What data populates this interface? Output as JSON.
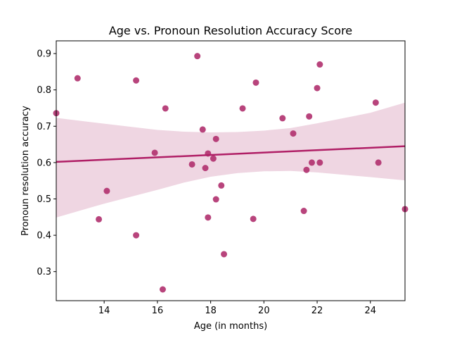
{
  "chart_data": {
    "type": "scatter",
    "title": "Age vs. Pronoun Resolution Accuracy Score",
    "xlabel": "Age (in months)",
    "ylabel": "Pronoun resolution accuracy",
    "xlim": [
      12.2,
      25.3
    ],
    "ylim": [
      0.22,
      0.935
    ],
    "xticks": [
      14,
      16,
      18,
      20,
      22,
      24
    ],
    "yticks": [
      0.3,
      0.4,
      0.5,
      0.6,
      0.7,
      0.8,
      0.9
    ],
    "grid": false,
    "colors": {
      "points": "#b0306e",
      "line": "#b01f66",
      "band": "#efd6e2"
    },
    "points": [
      {
        "x": 12.2,
        "y": 0.736
      },
      {
        "x": 13.0,
        "y": 0.832
      },
      {
        "x": 13.8,
        "y": 0.444
      },
      {
        "x": 14.1,
        "y": 0.522
      },
      {
        "x": 15.2,
        "y": 0.826
      },
      {
        "x": 15.2,
        "y": 0.4
      },
      {
        "x": 15.9,
        "y": 0.627
      },
      {
        "x": 16.2,
        "y": 0.251
      },
      {
        "x": 16.3,
        "y": 0.749
      },
      {
        "x": 17.3,
        "y": 0.595
      },
      {
        "x": 17.5,
        "y": 0.893
      },
      {
        "x": 17.7,
        "y": 0.691
      },
      {
        "x": 17.8,
        "y": 0.585
      },
      {
        "x": 17.9,
        "y": 0.625
      },
      {
        "x": 17.9,
        "y": 0.449
      },
      {
        "x": 18.1,
        "y": 0.611
      },
      {
        "x": 18.2,
        "y": 0.665
      },
      {
        "x": 18.2,
        "y": 0.499
      },
      {
        "x": 18.4,
        "y": 0.537
      },
      {
        "x": 18.5,
        "y": 0.348
      },
      {
        "x": 19.2,
        "y": 0.749
      },
      {
        "x": 19.6,
        "y": 0.445
      },
      {
        "x": 19.7,
        "y": 0.82
      },
      {
        "x": 20.7,
        "y": 0.722
      },
      {
        "x": 21.1,
        "y": 0.68
      },
      {
        "x": 21.5,
        "y": 0.467
      },
      {
        "x": 21.6,
        "y": 0.58
      },
      {
        "x": 21.7,
        "y": 0.727
      },
      {
        "x": 21.8,
        "y": 0.6
      },
      {
        "x": 22.0,
        "y": 0.805
      },
      {
        "x": 22.1,
        "y": 0.87
      },
      {
        "x": 22.1,
        "y": 0.6
      },
      {
        "x": 24.2,
        "y": 0.765
      },
      {
        "x": 24.3,
        "y": 0.6
      },
      {
        "x": 25.3,
        "y": 0.472
      }
    ],
    "regression": {
      "x": [
        12.2,
        25.3
      ],
      "y": [
        0.602,
        0.645
      ]
    },
    "confidence_band": {
      "x": [
        12.2,
        14.0,
        16.0,
        17.0,
        18.0,
        19.0,
        20.0,
        21.0,
        22.0,
        24.0,
        25.3
      ],
      "upper": [
        0.723,
        0.707,
        0.69,
        0.685,
        0.683,
        0.684,
        0.688,
        0.695,
        0.708,
        0.737,
        0.765
      ],
      "lower": [
        0.449,
        0.487,
        0.525,
        0.545,
        0.561,
        0.571,
        0.576,
        0.577,
        0.573,
        0.56,
        0.551
      ]
    }
  }
}
